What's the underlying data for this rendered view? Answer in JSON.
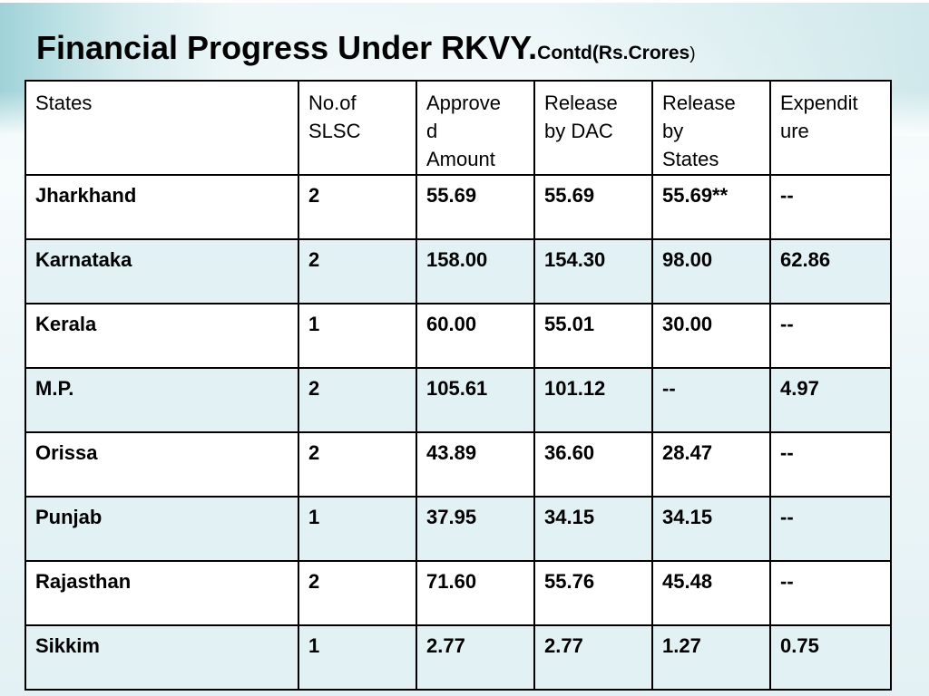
{
  "title": {
    "main": "Financial Progress Under RKVY.",
    "sub": "Contd(Rs.Crores",
    "close": ")"
  },
  "table": {
    "headers": [
      "States",
      "No.of SLSC",
      "Approved Amount",
      "Release by DAC",
      "Release by States",
      "Expenditure"
    ],
    "header_lines": [
      [
        "States"
      ],
      [
        "No.of",
        "SLSC"
      ],
      [
        "Approve",
        "d",
        "Amount"
      ],
      [
        "Release",
        "by DAC"
      ],
      [
        "Release",
        "by",
        "States"
      ],
      [
        "Expendit",
        "ure"
      ]
    ],
    "rows": [
      [
        "Jharkhand",
        "2",
        "55.69",
        "55.69",
        "55.69**",
        "--"
      ],
      [
        "Karnataka",
        "2",
        "158.00",
        "154.30",
        "98.00",
        "62.86"
      ],
      [
        "Kerala",
        "1",
        "60.00",
        "55.01",
        "30.00",
        "--"
      ],
      [
        "M.P.",
        "2",
        "105.61",
        "101.12",
        "--",
        "4.97"
      ],
      [
        "Orissa",
        "2",
        "43.89",
        "36.60",
        "28.47",
        "--"
      ],
      [
        "Punjab",
        "1",
        "37.95",
        "34.15",
        "34.15",
        "--"
      ],
      [
        "Rajasthan",
        "2",
        "71.60",
        "55.76",
        "45.48",
        "--"
      ],
      [
        "Sikkim",
        "1",
        "2.77",
        "2.77",
        "1.27",
        "0.75"
      ]
    ]
  },
  "colors": {
    "row_alt": "#e2f1f4",
    "accent_band": "#9fd2d8"
  }
}
